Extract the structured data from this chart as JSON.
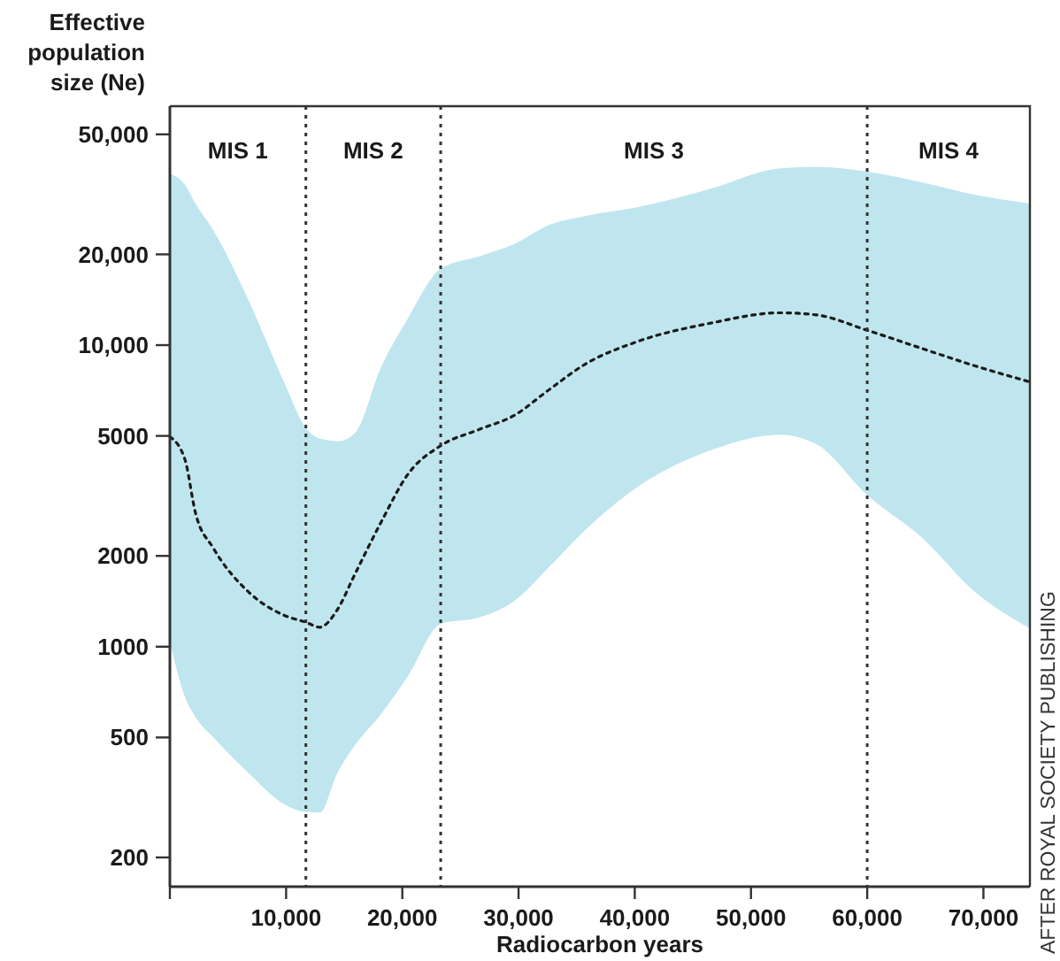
{
  "chart_data": {
    "type": "line",
    "xlabel": "Radiocarbon years",
    "ylabel": "Effective population size (Ne)",
    "xlim": [
      0,
      74000
    ],
    "ylim": [
      160,
      62000
    ],
    "log": "y",
    "grid": false,
    "line_style": "dotted",
    "xticks": [
      {
        "value": 0,
        "label": null
      },
      {
        "value": 10000,
        "label": "10,000"
      },
      {
        "value": 20000,
        "label": "20,000"
      },
      {
        "value": 30000,
        "label": "30,000"
      },
      {
        "value": 40000,
        "label": "40,000"
      },
      {
        "value": 50000,
        "label": "50,000"
      },
      {
        "value": 60000,
        "label": "60,000"
      },
      {
        "value": 70000,
        "label": "70,000"
      }
    ],
    "yticks": [
      200,
      500,
      1000,
      2000,
      5000,
      {
        "value": 10000,
        "label": "10,000"
      },
      {
        "value": 20000,
        "label": "20,000"
      },
      {
        "value": 50000,
        "label": "50,000"
      }
    ],
    "x": [
      0,
      1300,
      2200,
      3750,
      6800,
      9850,
      11700,
      12900,
      14400,
      15900,
      18200,
      20500,
      23300,
      26600,
      29600,
      32700,
      35700,
      40300,
      46400,
      52500,
      55600,
      60000,
      64700,
      69300,
      74000
    ],
    "series": [
      {
        "color": "#1a1a1a",
        "values": [
          4970,
          4170,
          2780,
          2120,
          1515,
          1270,
          1205,
          1160,
          1324,
          1733,
          2600,
          3740,
          4640,
          5250,
          5840,
          7150,
          8630,
          10300,
          11800,
          12800,
          12600,
          11200,
          9750,
          8530,
          7550
        ],
        "lower": [
          1040,
          680,
          585,
          500,
          380,
          300,
          283,
          282,
          380,
          470,
          600,
          800,
          1190,
          1250,
          1415,
          1850,
          2430,
          3400,
          4460,
          5050,
          4700,
          3180,
          2300,
          1515,
          1150
        ],
        "upper": [
          37100,
          34000,
          29500,
          24000,
          14000,
          7500,
          5300,
          4900,
          4800,
          5100,
          8500,
          12300,
          17900,
          19700,
          21600,
          25100,
          26800,
          28700,
          32900,
          38600,
          39000,
          37600,
          34700,
          31500,
          29500
        ]
      }
    ],
    "ref_lines": [
      {
        "axis": "x",
        "value": 11700,
        "line_style": "dotted"
      },
      {
        "axis": "x",
        "value": 23300,
        "line_style": "dotted"
      },
      {
        "axis": "x",
        "value": 60000,
        "line_style": "dotted"
      }
    ],
    "annotations": [
      "MIS 1",
      "MIS 2",
      "MIS 3",
      "MIS 4",
      "AFTER ROYAL SOCIETY PUBLISHING"
    ]
  }
}
